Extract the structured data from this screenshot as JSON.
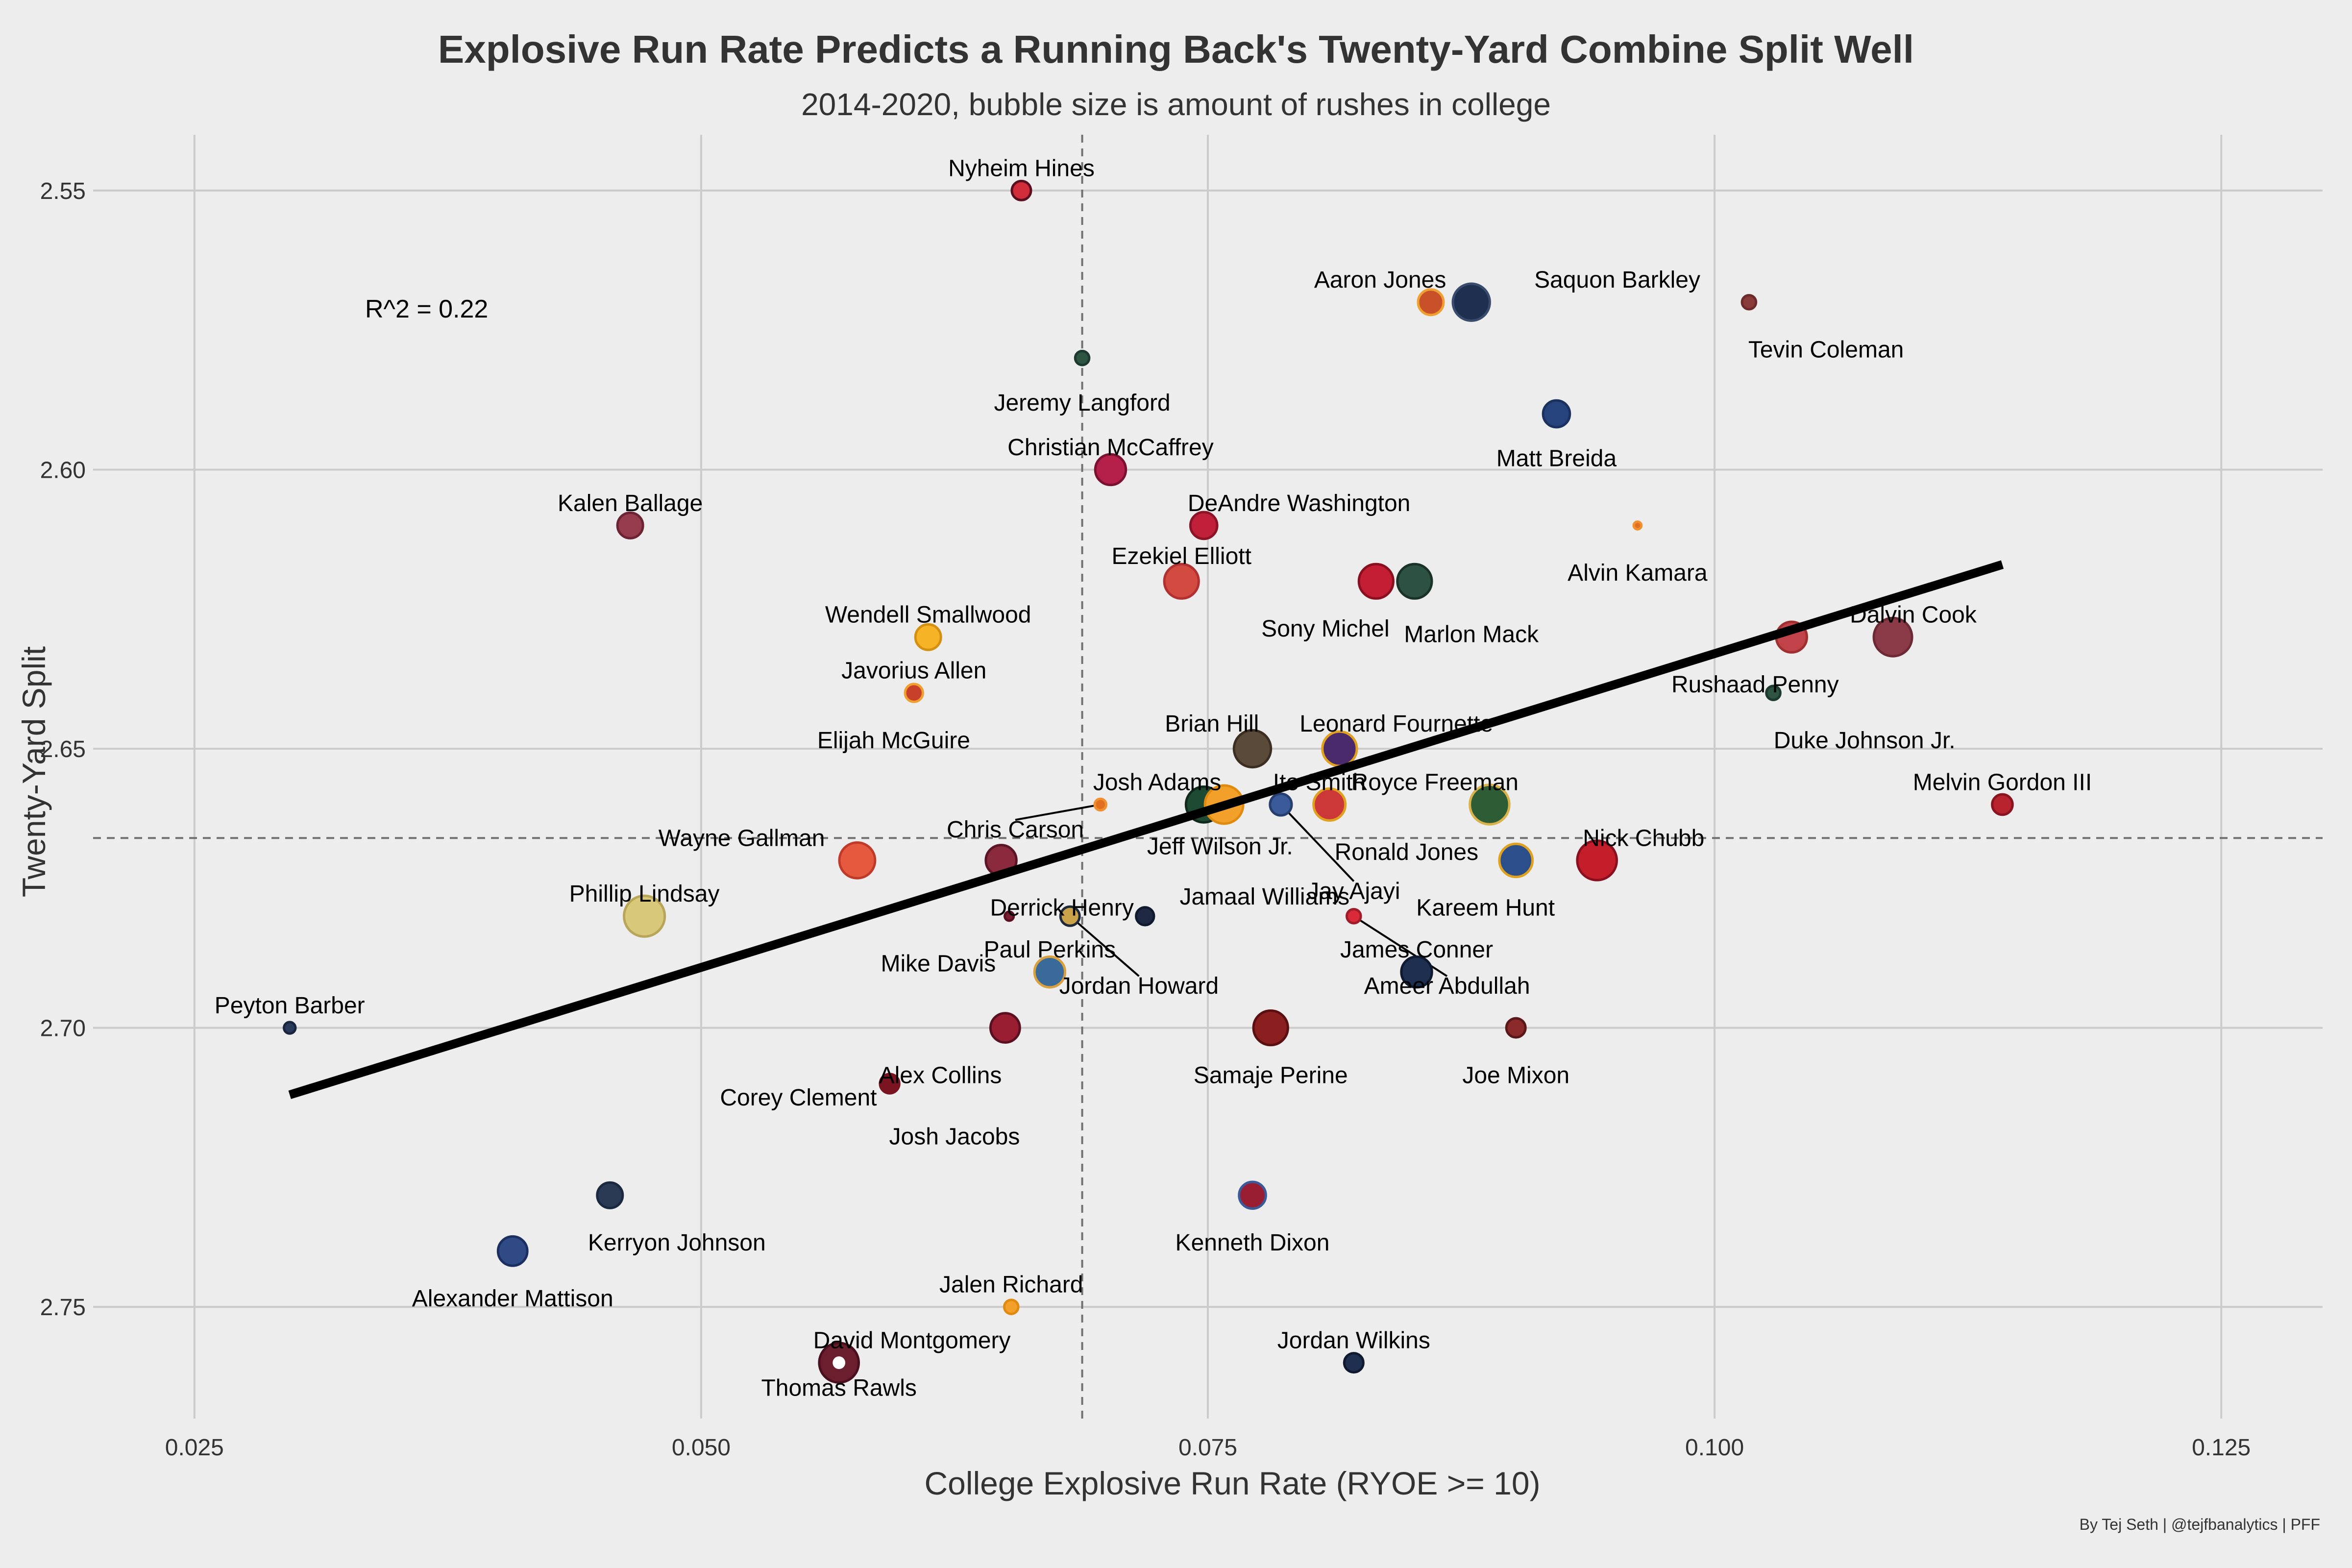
{
  "chart_data": {
    "type": "scatter",
    "title": "Explosive Run Rate Predicts a Running Back's Twenty-Yard Combine Split Well",
    "subtitle": "2014-2020, bubble size is amount of rushes in college",
    "xlabel": "College Explosive Run Rate (RYOE >= 10)",
    "ylabel": "Twenty-Yard Split",
    "caption": "By Tej Seth | @tejfbanalytics | PFF",
    "annotation": "R^2 = 0.22",
    "xlim": [
      0.02,
      0.13
    ],
    "ylim": [
      2.77,
      2.54
    ],
    "y_inverted": true,
    "grid": true,
    "xticks": [
      0.025,
      0.05,
      0.075,
      0.1,
      0.125
    ],
    "xtick_labels": [
      "0.025",
      "0.050",
      "0.075",
      "0.100",
      "0.125"
    ],
    "yticks": [
      2.55,
      2.6,
      2.65,
      2.7,
      2.75
    ],
    "ytick_labels": [
      "2.55",
      "2.60",
      "2.65",
      "2.70",
      "2.75"
    ],
    "vline_x": 0.0688,
    "hline_y": 2.666,
    "trend_line": {
      "x": [
        0.0297,
        0.1142
      ],
      "y": [
        2.712,
        2.617
      ],
      "color": "#000000"
    },
    "points": [
      {
        "name": "Nyheim Hines",
        "x": 0.0658,
        "y": 2.55,
        "r": 0.75,
        "fill": "#d12c3a",
        "edge": "#5a1020",
        "lx": 0.0658,
        "ly": 2.546
      },
      {
        "name": "Aaron Jones",
        "x": 0.086,
        "y": 2.57,
        "r": 1.0,
        "fill": "#c8512a",
        "edge": "#f0a030",
        "lx": 0.0835,
        "ly": 2.566
      },
      {
        "name": "Saquon Barkley",
        "x": 0.088,
        "y": 2.57,
        "r": 1.45,
        "fill": "#1e2f4f",
        "edge": "#3a4c6e",
        "lx": 0.0952,
        "ly": 2.566
      },
      {
        "name": "Tevin Coleman",
        "x": 0.1017,
        "y": 2.57,
        "r": 0.55,
        "fill": "#8b3a3a",
        "edge": "#6d2a2a",
        "lx": 0.1055,
        "ly": 2.5785
      },
      {
        "name": "Jeremy Langford",
        "x": 0.0688,
        "y": 2.58,
        "r": 0.55,
        "fill": "#2e5443",
        "edge": "#1c3a2e",
        "lx": 0.0688,
        "ly": 2.588
      },
      {
        "name": "Matt Breida",
        "x": 0.0922,
        "y": 2.59,
        "r": 1.05,
        "fill": "#27437e",
        "edge": "#1b3160",
        "lx": 0.0922,
        "ly": 2.598
      },
      {
        "name": "Christian McCaffrey",
        "x": 0.0702,
        "y": 2.6,
        "r": 1.2,
        "fill": "#b5204a",
        "edge": "#7b1030",
        "lx": 0.0702,
        "ly": 2.596
      },
      {
        "name": "Kalen Ballage",
        "x": 0.0465,
        "y": 2.61,
        "r": 1.0,
        "fill": "#963c4e",
        "edge": "#6c2435",
        "lx": 0.0465,
        "ly": 2.606
      },
      {
        "name": "DeAndre Washington",
        "x": 0.0748,
        "y": 2.61,
        "r": 1.05,
        "fill": "#c1203a",
        "edge": "#8b1427",
        "lx": 0.0795,
        "ly": 2.606
      },
      {
        "name": "Alvin Kamara",
        "x": 0.0962,
        "y": 2.61,
        "r": 0.3,
        "fill": "#e07020",
        "edge": "#f09030",
        "lx": 0.0962,
        "ly": 2.6185
      },
      {
        "name": "Ezekiel Elliott",
        "x": 0.0737,
        "y": 2.62,
        "r": 1.35,
        "fill": "#d24a40",
        "edge": "#b13030",
        "lx": 0.0737,
        "ly": 2.6155
      },
      {
        "name": "Sony Michel",
        "x": 0.0833,
        "y": 2.62,
        "r": 1.35,
        "fill": "#c41e35",
        "edge": "#8a1020",
        "lx": 0.0808,
        "ly": 2.6285
      },
      {
        "name": "Marlon Mack",
        "x": 0.0852,
        "y": 2.62,
        "r": 1.35,
        "fill": "#2d5244",
        "edge": "#1a3328",
        "lx": 0.088,
        "ly": 2.6295
      },
      {
        "name": "Wendell Smallwood",
        "x": 0.0612,
        "y": 2.63,
        "r": 1.0,
        "fill": "#f5b325",
        "edge": "#d49010",
        "lx": 0.0612,
        "ly": 2.626
      },
      {
        "name": "Rushaad Penny",
        "x": 0.1038,
        "y": 2.63,
        "r": 1.2,
        "fill": "#c2424a",
        "edge": "#a03030",
        "lx": 0.102,
        "ly": 2.6385
      },
      {
        "name": "Dalvin Cook",
        "x": 0.1088,
        "y": 2.63,
        "r": 1.5,
        "fill": "#8b3a48",
        "edge": "#6c2a35",
        "lx": 0.1098,
        "ly": 2.626
      },
      {
        "name": "Javorius Allen",
        "x": 0.0605,
        "y": 2.64,
        "r": 0.7,
        "fill": "#c8402a",
        "edge": "#f0a030",
        "lx": 0.0605,
        "ly": 2.636
      },
      {
        "name": "Elijah McGuire",
        "x": 0.0605,
        "y": 2.64,
        "r": 0.0,
        "fill": "#c8402a",
        "edge": "#c8402a",
        "lx": 0.0595,
        "ly": 2.6485
      },
      {
        "name": "Duke Johnson Jr.",
        "x": 0.1029,
        "y": 2.64,
        "r": 0.55,
        "fill": "#2e5443",
        "edge": "#1c3a2e",
        "lx": 0.1074,
        "ly": 2.6485
      },
      {
        "name": "Brian Hill",
        "x": 0.0772,
        "y": 2.65,
        "r": 1.45,
        "fill": "#5a4a3a",
        "edge": "#3c2f22",
        "lx": 0.0752,
        "ly": 2.6455
      },
      {
        "name": "Leonard Fournette",
        "x": 0.0815,
        "y": 2.65,
        "r": 1.35,
        "fill": "#4a2a6a",
        "edge": "#e0a020",
        "lx": 0.0843,
        "ly": 2.6455
      },
      {
        "name": "Josh Adams",
        "x": 0.0748,
        "y": 2.66,
        "r": 1.4,
        "fill": "#1e4a34",
        "edge": "#0f2a1c",
        "lx": 0.0725,
        "ly": 2.656
      },
      {
        "name": "Ito Smith",
        "x": 0.0758,
        "y": 2.66,
        "r": 1.5,
        "fill": "#f3a02a",
        "edge": "#e08a10",
        "lx": 0.0805,
        "ly": 2.656
      },
      {
        "name": "Chris Carson",
        "x": 0.0697,
        "y": 2.66,
        "r": 0.45,
        "fill": "#e07020",
        "edge": "#f09030",
        "lx": 0.0655,
        "ly": 2.6645,
        "lineTo": [
          0.0697,
          2.66
        ]
      },
      {
        "name": "Jeff Wilson Jr.",
        "x": 0.0745,
        "y": 2.66,
        "r": 0.0,
        "fill": "#1e4a34",
        "edge": "#1e4a34",
        "lx": 0.0756,
        "ly": 2.6675
      },
      {
        "name": "Jay Ajayi",
        "x": 0.0786,
        "y": 2.66,
        "r": 0.85,
        "fill": "#3b5a9a",
        "edge": "#263e70",
        "lx": 0.0822,
        "ly": 2.6755,
        "lineTo": [
          0.0786,
          2.66
        ]
      },
      {
        "name": "Ronald Jones",
        "x": 0.081,
        "y": 2.66,
        "r": 1.25,
        "fill": "#cc3838",
        "edge": "#e0a020",
        "lx": 0.0848,
        "ly": 2.6685
      },
      {
        "name": "Royce Freeman",
        "x": 0.0889,
        "y": 2.66,
        "r": 1.55,
        "fill": "#2e5c34",
        "edge": "#d9b24a",
        "lx": 0.0862,
        "ly": 2.656
      },
      {
        "name": "Melvin Gordon III",
        "x": 0.1142,
        "y": 2.66,
        "r": 0.8,
        "fill": "#b8242e",
        "edge": "#8a1420",
        "lx": 0.1142,
        "ly": 2.656
      },
      {
        "name": "Wayne Gallman",
        "x": 0.0577,
        "y": 2.67,
        "r": 1.4,
        "fill": "#e55a3f",
        "edge": "#c03a2a",
        "lx": 0.052,
        "ly": 2.666
      },
      {
        "name": "Derrick Henry",
        "x": 0.0648,
        "y": 2.67,
        "r": 1.2,
        "fill": "#8b2a3c",
        "edge": "#5a1526",
        "lx": 0.0678,
        "ly": 2.6785
      },
      {
        "name": "Kareem Hunt",
        "x": 0.0902,
        "y": 2.67,
        "r": 1.3,
        "fill": "#2a4f8a",
        "edge": "#e0a020",
        "lx": 0.0887,
        "ly": 2.6785
      },
      {
        "name": "Nick Chubb",
        "x": 0.0942,
        "y": 2.67,
        "r": 1.55,
        "fill": "#c41e2a",
        "edge": "#8a1020",
        "lx": 0.0965,
        "ly": 2.666
      },
      {
        "name": "Phillip Lindsay",
        "x": 0.0472,
        "y": 2.68,
        "r": 1.6,
        "fill": "#d8c87a",
        "edge": "#b8a55a",
        "lx": 0.0472,
        "ly": 2.676
      },
      {
        "name": "Mike Davis",
        "x": 0.0652,
        "y": 2.68,
        "r": 0.35,
        "fill": "#7a1e32",
        "edge": "#5a1020",
        "lx": 0.0617,
        "ly": 2.6885
      },
      {
        "name": "Jordan Howard",
        "x": 0.0682,
        "y": 2.68,
        "r": 0.75,
        "fill": "#c9a24a",
        "edge": "#1e2a3a",
        "lx": 0.0716,
        "ly": 2.6925,
        "lineTo": [
          0.0682,
          2.68
        ]
      },
      {
        "name": "Jamaal Williams",
        "x": 0.0719,
        "y": 2.68,
        "r": 0.7,
        "fill": "#1e2a44",
        "edge": "#0f1a2e",
        "lx": 0.0778,
        "ly": 2.6765
      },
      {
        "name": "Ameer Abdullah",
        "x": 0.0822,
        "y": 2.68,
        "r": 0.55,
        "fill": "#d92a3a",
        "edge": "#a01c28",
        "lx": 0.0868,
        "ly": 2.6925,
        "lineTo": [
          0.0822,
          2.68
        ]
      },
      {
        "name": "Paul Perkins",
        "x": 0.0672,
        "y": 2.69,
        "r": 1.2,
        "fill": "#3a6a9a",
        "edge": "#d9a040",
        "lx": 0.0672,
        "ly": 2.686
      },
      {
        "name": "James Conner",
        "x": 0.0853,
        "y": 2.69,
        "r": 1.2,
        "fill": "#1e2f4f",
        "edge": "#0f1a30",
        "lx": 0.0853,
        "ly": 2.686
      },
      {
        "name": "Peyton Barber",
        "x": 0.0297,
        "y": 2.7,
        "r": 0.45,
        "fill": "#2a3a5a",
        "edge": "#1a2640",
        "lx": 0.0297,
        "ly": 2.696
      },
      {
        "name": "Alex Collins",
        "x": 0.065,
        "y": 2.7,
        "r": 1.15,
        "fill": "#9a1e32",
        "edge": "#5a1020",
        "lx": 0.0618,
        "ly": 2.7085
      },
      {
        "name": "Samaje Perine",
        "x": 0.0781,
        "y": 2.7,
        "r": 1.35,
        "fill": "#8b1e1e",
        "edge": "#5a1010",
        "lx": 0.0781,
        "ly": 2.7085
      },
      {
        "name": "Joe Mixon",
        "x": 0.0902,
        "y": 2.7,
        "r": 0.75,
        "fill": "#8b2a2a",
        "edge": "#5a1818",
        "lx": 0.0902,
        "ly": 2.7085
      },
      {
        "name": "Corey Clement",
        "x": 0.0593,
        "y": 2.71,
        "r": 0.95,
        "fill": "#7a1420",
        "edge": "#f0f0f0",
        "lx": 0.0548,
        "ly": 2.7125
      },
      {
        "name": "Josh Jacobs",
        "x": 0.0593,
        "y": 2.71,
        "r": 0.0,
        "fill": "#7a1420",
        "edge": "#7a1420",
        "lx": 0.0625,
        "ly": 2.7195
      },
      {
        "name": "Kerryon Johnson",
        "x": 0.0455,
        "y": 2.73,
        "r": 1.0,
        "fill": "#2a3a55",
        "edge": "#1a2840",
        "lx": 0.0488,
        "ly": 2.7385
      },
      {
        "name": "Kenneth Dixon",
        "x": 0.0772,
        "y": 2.73,
        "r": 1.05,
        "fill": "#9a1e32",
        "edge": "#3a5a9a",
        "lx": 0.0772,
        "ly": 2.7385
      },
      {
        "name": "Alexander Mattison",
        "x": 0.0407,
        "y": 2.74,
        "r": 1.15,
        "fill": "#2f4a85",
        "edge": "#1b3060",
        "lx": 0.0407,
        "ly": 2.7485
      },
      {
        "name": "Jalen Richard",
        "x": 0.0653,
        "y": 2.75,
        "r": 0.55,
        "fill": "#f3a02a",
        "edge": "#e08a10",
        "lx": 0.0653,
        "ly": 2.746
      },
      {
        "name": "David Montgomery",
        "x": 0.0568,
        "y": 2.76,
        "r": 1.55,
        "fill": "#6a1e2e",
        "edge": "#4a1020",
        "lx": 0.0604,
        "ly": 2.756
      },
      {
        "name": "Thomas Rawls",
        "x": 0.0568,
        "y": 2.76,
        "r": 0.4,
        "fill": "#ffffff",
        "edge": "#ffffff",
        "lx": 0.0568,
        "ly": 2.7645
      },
      {
        "name": "Jordan Wilkins",
        "x": 0.0822,
        "y": 2.76,
        "r": 0.75,
        "fill": "#1e2f4f",
        "edge": "#0f1a30",
        "lx": 0.0822,
        "ly": 2.756
      }
    ]
  }
}
